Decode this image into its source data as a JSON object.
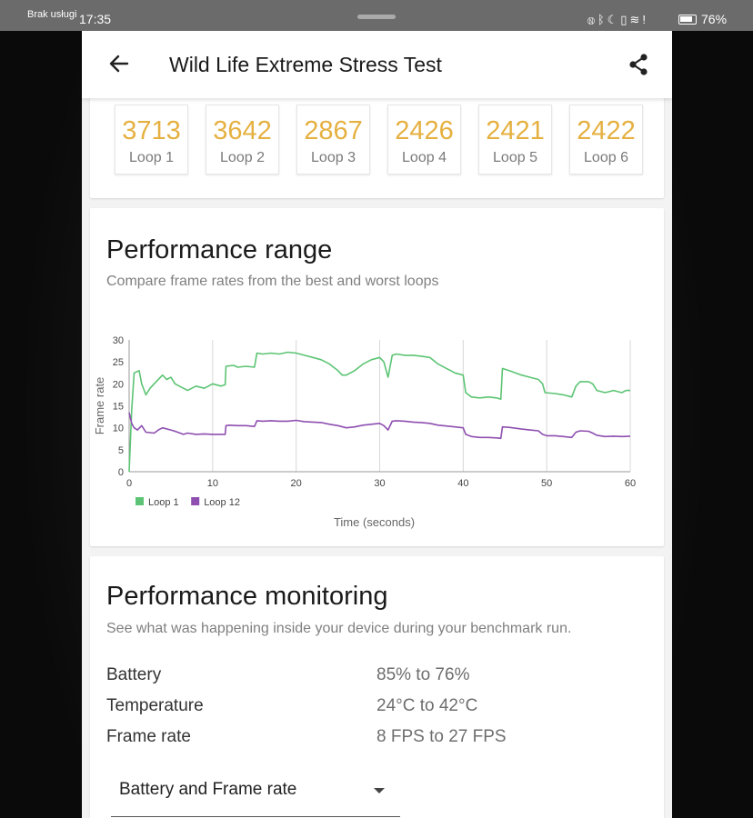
{
  "status_bar": {
    "carrier": "Brak usługi",
    "time": "17:35",
    "icons": [
      "nfc-icon",
      "bluetooth-icon",
      "moon-icon",
      "vibrate-icon",
      "wifi-icon",
      "alert-icon",
      "battery-icon"
    ],
    "battery": "76%"
  },
  "app_bar": {
    "title": "Wild Life Extreme Stress Test"
  },
  "loops": [
    {
      "score": "3713",
      "label": "Loop 1"
    },
    {
      "score": "3642",
      "label": "Loop 2"
    },
    {
      "score": "2867",
      "label": "Loop 3"
    },
    {
      "score": "2426",
      "label": "Loop 4"
    },
    {
      "score": "2421",
      "label": "Loop 5"
    },
    {
      "score": "2422",
      "label": "Loop 6"
    }
  ],
  "performance_range": {
    "title": "Performance range",
    "subtitle": "Compare frame rates from the best and worst loops"
  },
  "chart_data": {
    "type": "line",
    "title": "",
    "xlabel": "Time (seconds)",
    "ylabel": "Frame rate",
    "xlim": [
      0,
      60
    ],
    "ylim": [
      0,
      30
    ],
    "x_ticks": [
      "0",
      "10",
      "20",
      "30",
      "40",
      "50",
      "60"
    ],
    "y_ticks": [
      "0",
      "5",
      "10",
      "15",
      "20",
      "25",
      "30"
    ],
    "grid": "vertical",
    "legend": "bottom-left",
    "series": [
      {
        "name": "Loop 1",
        "color": "#5cc474",
        "points": [
          [
            0,
            0
          ],
          [
            0.3,
            14
          ],
          [
            0.6,
            22.5
          ],
          [
            1.2,
            23
          ],
          [
            1.5,
            20
          ],
          [
            2,
            17.5
          ],
          [
            2.5,
            19
          ],
          [
            3,
            20
          ],
          [
            4,
            22
          ],
          [
            4.5,
            21
          ],
          [
            5,
            21.5
          ],
          [
            5.5,
            20
          ],
          [
            6.5,
            19
          ],
          [
            7,
            18.5
          ],
          [
            8,
            19.5
          ],
          [
            9,
            19
          ],
          [
            9.5,
            19.5
          ],
          [
            10,
            20
          ],
          [
            11,
            19.5
          ],
          [
            11.5,
            19.8
          ],
          [
            11.6,
            24
          ],
          [
            12.5,
            24.2
          ],
          [
            13,
            23.8
          ],
          [
            14,
            24
          ],
          [
            15,
            23.8
          ],
          [
            15.3,
            27
          ],
          [
            16,
            26.8
          ],
          [
            17,
            27
          ],
          [
            18,
            26.8
          ],
          [
            19,
            27.2
          ],
          [
            20,
            27
          ],
          [
            21,
            26.5
          ],
          [
            22,
            26
          ],
          [
            23,
            25.5
          ],
          [
            24,
            24.5
          ],
          [
            25,
            23
          ],
          [
            25.5,
            22
          ],
          [
            26,
            22
          ],
          [
            27,
            23
          ],
          [
            28,
            24.5
          ],
          [
            29,
            25.5
          ],
          [
            30,
            26
          ],
          [
            30.5,
            25
          ],
          [
            31,
            21.5
          ],
          [
            31.5,
            26.5
          ],
          [
            32,
            26.8
          ],
          [
            33,
            26.5
          ],
          [
            34,
            26.5
          ],
          [
            35,
            26.3
          ],
          [
            36,
            26
          ],
          [
            37,
            24.5
          ],
          [
            38,
            23.5
          ],
          [
            38.5,
            23
          ],
          [
            39,
            22.5
          ],
          [
            40,
            22
          ],
          [
            40.3,
            18
          ],
          [
            41,
            17
          ],
          [
            42,
            16.8
          ],
          [
            43,
            17
          ],
          [
            44,
            16.8
          ],
          [
            44.5,
            16.5
          ],
          [
            44.7,
            23.5
          ],
          [
            45.5,
            23
          ],
          [
            47,
            22
          ],
          [
            48,
            21.5
          ],
          [
            49,
            21
          ],
          [
            49.5,
            20
          ],
          [
            49.8,
            18
          ],
          [
            51,
            17.8
          ],
          [
            52,
            17.5
          ],
          [
            53,
            17
          ],
          [
            53.5,
            19.5
          ],
          [
            54,
            20.5
          ],
          [
            55,
            20.5
          ],
          [
            55.5,
            20
          ],
          [
            56,
            18.5
          ],
          [
            57,
            18
          ],
          [
            58,
            18.5
          ],
          [
            59,
            18
          ],
          [
            59.5,
            18.5
          ],
          [
            60,
            18.5
          ]
        ]
      },
      {
        "name": "Loop 12",
        "color": "#8e4fb0",
        "points": [
          [
            0,
            13.5
          ],
          [
            0.3,
            11
          ],
          [
            0.6,
            10
          ],
          [
            1,
            9.5
          ],
          [
            1.5,
            10.5
          ],
          [
            2,
            9
          ],
          [
            3,
            8.8
          ],
          [
            3.5,
            9.5
          ],
          [
            4,
            10
          ],
          [
            5,
            9.5
          ],
          [
            5.5,
            9.2
          ],
          [
            6.5,
            8.5
          ],
          [
            7,
            8.8
          ],
          [
            8,
            8.5
          ],
          [
            9,
            8.6
          ],
          [
            10,
            8.5
          ],
          [
            11,
            8.5
          ],
          [
            11.5,
            8.5
          ],
          [
            11.6,
            10.5
          ],
          [
            12,
            10.6
          ],
          [
            13,
            10.5
          ],
          [
            14,
            10.5
          ],
          [
            15,
            10.3
          ],
          [
            15.3,
            11.6
          ],
          [
            16,
            11.5
          ],
          [
            17,
            11.6
          ],
          [
            18,
            11.5
          ],
          [
            19,
            11.5
          ],
          [
            20,
            11.7
          ],
          [
            21,
            11.4
          ],
          [
            22,
            11.3
          ],
          [
            23,
            11.2
          ],
          [
            24,
            10.8
          ],
          [
            25,
            10.5
          ],
          [
            26,
            10
          ],
          [
            27,
            10.2
          ],
          [
            28,
            10.6
          ],
          [
            29,
            10.8
          ],
          [
            30,
            11
          ],
          [
            30.5,
            10.5
          ],
          [
            31,
            9.5
          ],
          [
            31.5,
            11.5
          ],
          [
            32,
            11.6
          ],
          [
            33,
            11.5
          ],
          [
            34,
            11.3
          ],
          [
            35,
            11.2
          ],
          [
            36,
            11
          ],
          [
            37,
            10.6
          ],
          [
            38,
            10.4
          ],
          [
            39,
            10.2
          ],
          [
            40,
            10
          ],
          [
            40.3,
            8.5
          ],
          [
            41,
            8
          ],
          [
            42,
            7.8
          ],
          [
            43,
            7.8
          ],
          [
            44,
            7.7
          ],
          [
            44.5,
            7.6
          ],
          [
            44.7,
            10.2
          ],
          [
            45.5,
            10.1
          ],
          [
            47,
            9.7
          ],
          [
            48,
            9.5
          ],
          [
            49,
            9.3
          ],
          [
            49.5,
            8.5
          ],
          [
            50,
            8.2
          ],
          [
            51,
            8.2
          ],
          [
            52,
            8
          ],
          [
            53,
            7.8
          ],
          [
            53.5,
            9
          ],
          [
            54,
            9.3
          ],
          [
            55,
            9.2
          ],
          [
            55.5,
            8.8
          ],
          [
            56,
            8.3
          ],
          [
            57,
            8
          ],
          [
            58,
            8.1
          ],
          [
            59,
            8
          ],
          [
            60,
            8.1
          ]
        ]
      }
    ]
  },
  "performance_monitoring": {
    "title": "Performance monitoring",
    "subtitle": "See what was happening inside your device during your benchmark run.",
    "metrics": [
      {
        "label": "Battery",
        "value": "85% to 76%"
      },
      {
        "label": "Temperature",
        "value": "24°C to 42°C"
      },
      {
        "label": "Frame rate",
        "value": "8 FPS to 27 FPS"
      }
    ],
    "dropdown_value": "Battery and Frame rate"
  }
}
